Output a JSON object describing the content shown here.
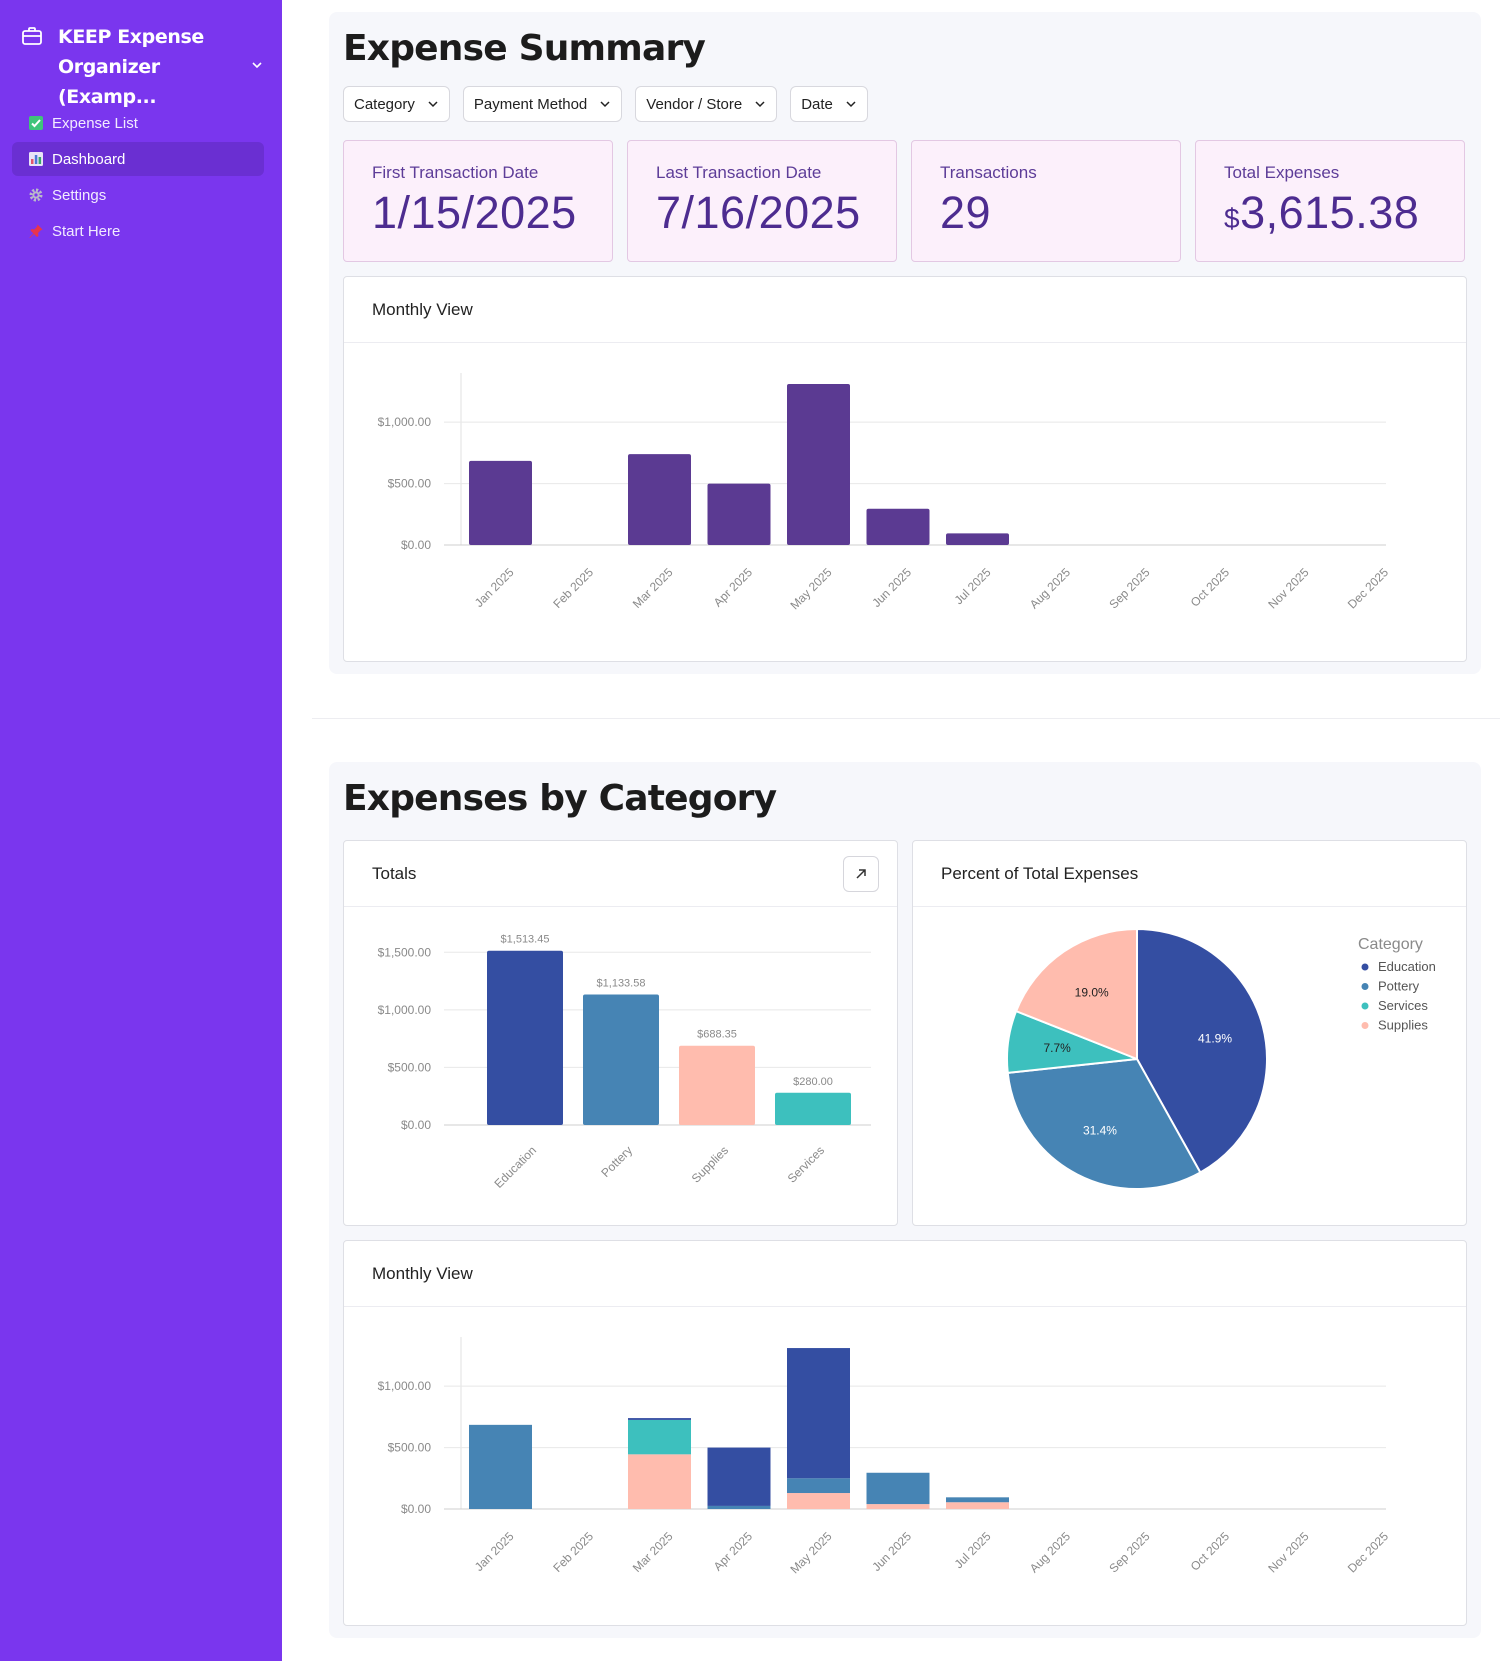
{
  "sidebar": {
    "app_title": "KEEP Expense Organizer (Examp...",
    "items": [
      {
        "label": "Expense List",
        "icon": "check-box-icon"
      },
      {
        "label": "Dashboard",
        "icon": "bar-chart-icon",
        "active": true
      },
      {
        "label": "Settings",
        "icon": "gear-icon"
      },
      {
        "label": "Start Here",
        "icon": "pushpin-icon"
      }
    ]
  },
  "summary": {
    "title": "Expense Summary",
    "filters": [
      "Category",
      "Payment Method",
      "Vendor / Store",
      "Date"
    ],
    "kpis": {
      "first_label": "First Transaction Date",
      "first_value": "1/15/2025",
      "last_label": "Last Transaction Date",
      "last_value": "7/16/2025",
      "count_label": "Transactions",
      "count_value": "29",
      "total_label": "Total Expenses",
      "total_currency": "$",
      "total_value": "3,615.38"
    },
    "monthly_card_title": "Monthly View"
  },
  "category": {
    "title": "Expenses by Category",
    "totals_card_title": "Totals",
    "pie_card_title": "Percent of Total Expenses",
    "legend_title": "Category",
    "monthly_card_title": "Monthly View"
  },
  "colors": {
    "sidebar": "#7a36ee",
    "monthly_bar": "#5b3a92",
    "Education": "#344ea2",
    "Pottery": "#4684b4",
    "Services": "#3dc0be",
    "Supplies": "#ffbcae"
  },
  "chart_data": [
    {
      "id": "monthly",
      "type": "bar",
      "title": "Monthly View",
      "categories": [
        "Jan 2025",
        "Feb 2025",
        "Mar 2025",
        "Apr 2025",
        "May 2025",
        "Jun 2025",
        "Jul 2025",
        "Aug 2025",
        "Sep 2025",
        "Oct 2025",
        "Nov 2025",
        "Dec 2025"
      ],
      "values": [
        685,
        0,
        740,
        500,
        1310,
        295,
        95,
        0,
        0,
        0,
        0,
        0
      ],
      "yticks": [
        0,
        500,
        1000
      ],
      "ytick_labels": [
        "$0.00",
        "$500.00",
        "$1,000.00"
      ],
      "ylim": [
        0,
        1400
      ]
    },
    {
      "id": "totals",
      "type": "bar",
      "title": "Totals",
      "categories": [
        "Education",
        "Pottery",
        "Supplies",
        "Services"
      ],
      "values": [
        1513.45,
        1133.58,
        688.35,
        280.0
      ],
      "value_labels": [
        "$1,513.45",
        "$1,133.58",
        "$688.35",
        "$280.00"
      ],
      "yticks": [
        0,
        500,
        1000,
        1500
      ],
      "ytick_labels": [
        "$0.00",
        "$500.00",
        "$1,000.00",
        "$1,500.00"
      ],
      "ylim": [
        0,
        1650
      ]
    },
    {
      "id": "pie",
      "type": "pie",
      "title": "Percent of Total Expenses",
      "labels": [
        "Education",
        "Pottery",
        "Services",
        "Supplies"
      ],
      "values": [
        41.9,
        31.4,
        7.7,
        19.0
      ],
      "value_labels": [
        "41.9%",
        "31.4%",
        "7.7%",
        "19.0%"
      ],
      "legend_title": "Category",
      "legend_position": "top-right"
    },
    {
      "id": "monthly-stacked",
      "type": "bar",
      "stacked": true,
      "title": "Monthly View",
      "categories": [
        "Jan 2025",
        "Feb 2025",
        "Mar 2025",
        "Apr 2025",
        "May 2025",
        "Jun 2025",
        "Jul 2025",
        "Aug 2025",
        "Sep 2025",
        "Oct 2025",
        "Nov 2025",
        "Dec 2025"
      ],
      "series": [
        {
          "name": "Supplies",
          "values": [
            0,
            0,
            445,
            0,
            130,
            40,
            55,
            0,
            0,
            0,
            0,
            0
          ]
        },
        {
          "name": "Pottery",
          "values": [
            685,
            0,
            0,
            25,
            120,
            255,
            40,
            0,
            0,
            0,
            0,
            0
          ]
        },
        {
          "name": "Services",
          "values": [
            0,
            0,
            280,
            0,
            0,
            0,
            0,
            0,
            0,
            0,
            0,
            0
          ]
        },
        {
          "name": "Education",
          "values": [
            0,
            0,
            15,
            475,
            1060,
            0,
            0,
            0,
            0,
            0,
            0,
            0
          ]
        }
      ],
      "yticks": [
        0,
        500,
        1000
      ],
      "ytick_labels": [
        "$0.00",
        "$500.00",
        "$1,000.00"
      ],
      "ylim": [
        0,
        1400
      ]
    }
  ]
}
